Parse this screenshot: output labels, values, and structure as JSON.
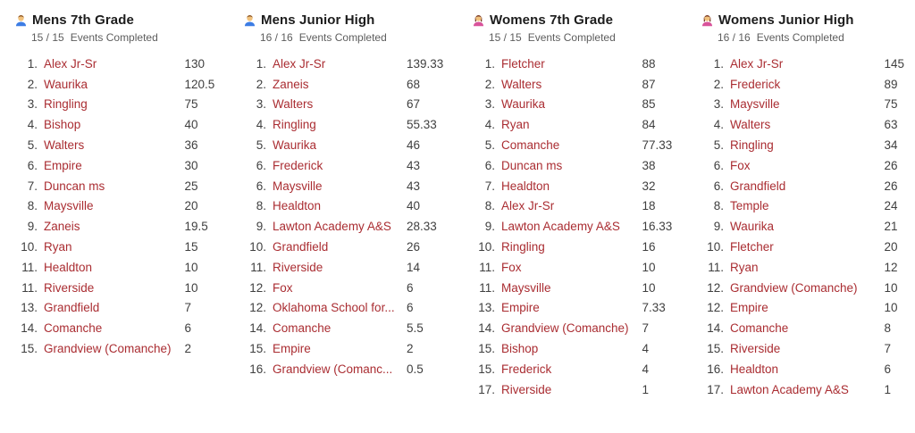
{
  "colors": {
    "team_link": "#aa2d32",
    "rank": "#3f3f3f",
    "score": "#3f3f3f",
    "title": "#1c1c1c",
    "subtitle": "#5d5d5d"
  },
  "board": {
    "columns": [
      {
        "title": "Mens 7th Grade",
        "icon": "man-icon",
        "icon_colors": {
          "hair": "#8d5524",
          "skin": "#f1c27d",
          "shirt": "#3d7de4",
          "long_hair": false
        },
        "events_completed": "15 / 15",
        "events_label": "Events Completed",
        "rows": [
          {
            "rank": "1.",
            "team": "Alex Jr-Sr",
            "score": "130"
          },
          {
            "rank": "2.",
            "team": "Waurika",
            "score": "120.5"
          },
          {
            "rank": "3.",
            "team": "Ringling",
            "score": "75"
          },
          {
            "rank": "4.",
            "team": "Bishop",
            "score": "40"
          },
          {
            "rank": "5.",
            "team": "Walters",
            "score": "36"
          },
          {
            "rank": "6.",
            "team": "Empire",
            "score": "30"
          },
          {
            "rank": "7.",
            "team": "Duncan ms",
            "score": "25"
          },
          {
            "rank": "8.",
            "team": "Maysville",
            "score": "20"
          },
          {
            "rank": "9.",
            "team": "Zaneis",
            "score": "19.5"
          },
          {
            "rank": "10.",
            "team": "Ryan",
            "score": "15"
          },
          {
            "rank": "11.",
            "team": "Healdton",
            "score": "10"
          },
          {
            "rank": "11.",
            "team": "Riverside",
            "score": "10"
          },
          {
            "rank": "13.",
            "team": "Grandfield",
            "score": "7"
          },
          {
            "rank": "14.",
            "team": "Comanche",
            "score": "6"
          },
          {
            "rank": "15.",
            "team": "Grandview (Comanche)",
            "score": "2"
          }
        ]
      },
      {
        "title": "Mens Junior High",
        "icon": "man-icon",
        "icon_colors": {
          "hair": "#8d5524",
          "skin": "#f1c27d",
          "shirt": "#3d7de4",
          "long_hair": false
        },
        "events_completed": "16 / 16",
        "events_label": "Events Completed",
        "rows": [
          {
            "rank": "1.",
            "team": "Alex Jr-Sr",
            "score": "139.33"
          },
          {
            "rank": "2.",
            "team": "Zaneis",
            "score": "68"
          },
          {
            "rank": "3.",
            "team": "Walters",
            "score": "67"
          },
          {
            "rank": "4.",
            "team": "Ringling",
            "score": "55.33"
          },
          {
            "rank": "5.",
            "team": "Waurika",
            "score": "46"
          },
          {
            "rank": "6.",
            "team": "Frederick",
            "score": "43"
          },
          {
            "rank": "6.",
            "team": "Maysville",
            "score": "43"
          },
          {
            "rank": "8.",
            "team": "Healdton",
            "score": "40"
          },
          {
            "rank": "9.",
            "team": "Lawton Academy A&S",
            "score": "28.33"
          },
          {
            "rank": "10.",
            "team": "Grandfield",
            "score": "26"
          },
          {
            "rank": "11.",
            "team": "Riverside",
            "score": "14"
          },
          {
            "rank": "12.",
            "team": "Fox",
            "score": "6"
          },
          {
            "rank": "12.",
            "team": "Oklahoma School for...",
            "score": "6"
          },
          {
            "rank": "14.",
            "team": "Comanche",
            "score": "5.5"
          },
          {
            "rank": "15.",
            "team": "Empire",
            "score": "2"
          },
          {
            "rank": "16.",
            "team": "Grandview (Comanc...",
            "score": "0.5"
          }
        ]
      },
      {
        "title": "Womens 7th Grade",
        "icon": "woman-icon",
        "icon_colors": {
          "hair": "#7a3b28",
          "skin": "#f1c27d",
          "shirt": "#d9539b",
          "long_hair": true
        },
        "events_completed": "15 / 15",
        "events_label": "Events Completed",
        "rows": [
          {
            "rank": "1.",
            "team": "Fletcher",
            "score": "88"
          },
          {
            "rank": "2.",
            "team": "Walters",
            "score": "87"
          },
          {
            "rank": "3.",
            "team": "Waurika",
            "score": "85"
          },
          {
            "rank": "4.",
            "team": "Ryan",
            "score": "84"
          },
          {
            "rank": "5.",
            "team": "Comanche",
            "score": "77.33"
          },
          {
            "rank": "6.",
            "team": "Duncan ms",
            "score": "38"
          },
          {
            "rank": "7.",
            "team": "Healdton",
            "score": "32"
          },
          {
            "rank": "8.",
            "team": "Alex Jr-Sr",
            "score": "18"
          },
          {
            "rank": "9.",
            "team": "Lawton Academy A&S",
            "score": "16.33"
          },
          {
            "rank": "10.",
            "team": "Ringling",
            "score": "16"
          },
          {
            "rank": "11.",
            "team": "Fox",
            "score": "10"
          },
          {
            "rank": "11.",
            "team": "Maysville",
            "score": "10"
          },
          {
            "rank": "13.",
            "team": "Empire",
            "score": "7.33"
          },
          {
            "rank": "14.",
            "team": "Grandview (Comanche)",
            "score": "7"
          },
          {
            "rank": "15.",
            "team": "Bishop",
            "score": "4"
          },
          {
            "rank": "15.",
            "team": "Frederick",
            "score": "4"
          },
          {
            "rank": "17.",
            "team": "Riverside",
            "score": "1"
          }
        ]
      },
      {
        "title": "Womens Junior High",
        "icon": "woman-icon",
        "icon_colors": {
          "hair": "#7a3b28",
          "skin": "#f1c27d",
          "shirt": "#d9539b",
          "long_hair": true
        },
        "events_completed": "16 / 16",
        "events_label": "Events Completed",
        "rows": [
          {
            "rank": "1.",
            "team": "Alex Jr-Sr",
            "score": "145"
          },
          {
            "rank": "2.",
            "team": "Frederick",
            "score": "89"
          },
          {
            "rank": "3.",
            "team": "Maysville",
            "score": "75"
          },
          {
            "rank": "4.",
            "team": "Walters",
            "score": "63"
          },
          {
            "rank": "5.",
            "team": "Ringling",
            "score": "34"
          },
          {
            "rank": "6.",
            "team": "Fox",
            "score": "26"
          },
          {
            "rank": "6.",
            "team": "Grandfield",
            "score": "26"
          },
          {
            "rank": "8.",
            "team": "Temple",
            "score": "24"
          },
          {
            "rank": "9.",
            "team": "Waurika",
            "score": "21"
          },
          {
            "rank": "10.",
            "team": "Fletcher",
            "score": "20"
          },
          {
            "rank": "11.",
            "team": "Ryan",
            "score": "12"
          },
          {
            "rank": "12.",
            "team": "Grandview (Comanche)",
            "score": "10"
          },
          {
            "rank": "12.",
            "team": "Empire",
            "score": "10"
          },
          {
            "rank": "14.",
            "team": "Comanche",
            "score": "8"
          },
          {
            "rank": "15.",
            "team": "Riverside",
            "score": "7"
          },
          {
            "rank": "16.",
            "team": "Healdton",
            "score": "6"
          },
          {
            "rank": "17.",
            "team": "Lawton Academy A&S",
            "score": "1"
          }
        ]
      }
    ]
  }
}
